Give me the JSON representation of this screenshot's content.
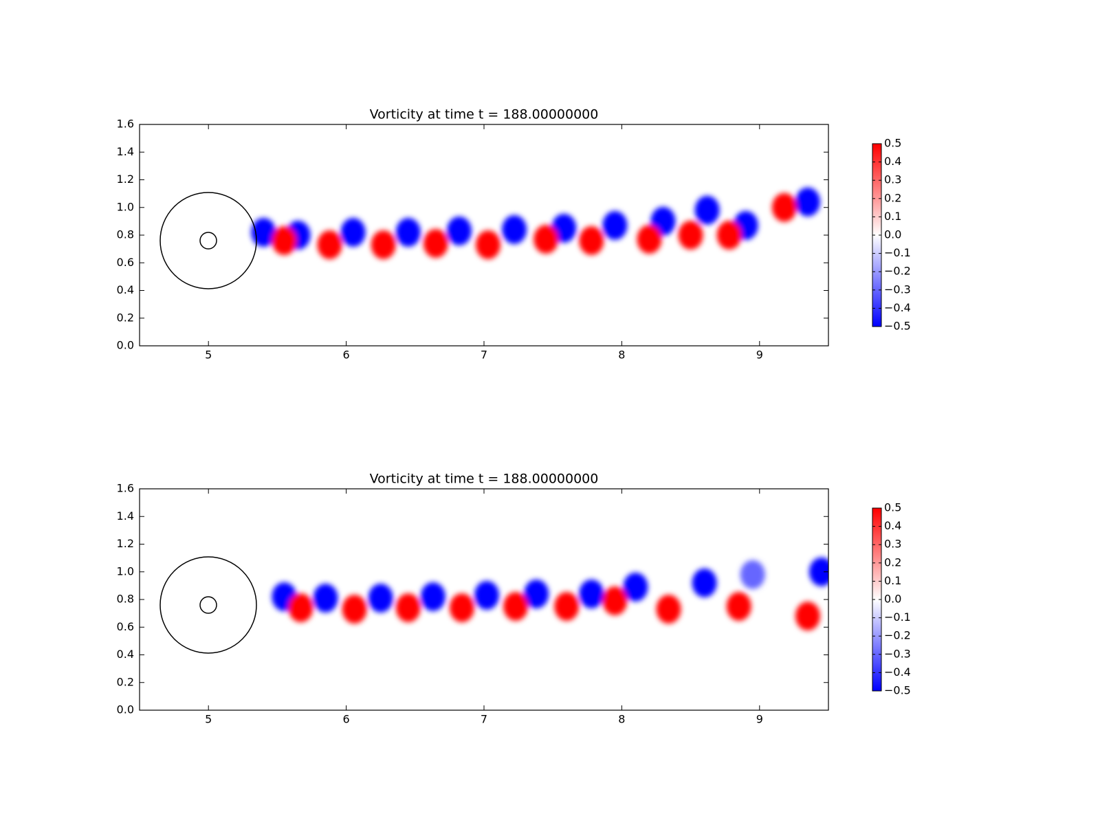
{
  "chart_data": [
    {
      "type": "heatmap",
      "title": "Vorticity at time t =   188.00000000",
      "xlim": [
        4.5,
        9.5
      ],
      "xticks": [
        5,
        6,
        7,
        8,
        9
      ],
      "ylim": [
        0,
        1.6
      ],
      "yticks": [
        {
          "value": 0,
          "label": "0.0"
        },
        0.2,
        0.4,
        0.6,
        0.8,
        {
          "value": 1,
          "label": "1.0"
        },
        1.2,
        1.4,
        1.6
      ],
      "x": [
        5.4,
        5.65,
        6.05,
        6.45,
        6.82,
        7.22,
        7.58,
        7.95,
        8.3,
        8.62,
        8.9,
        9.35,
        5.55,
        5.88,
        6.27,
        6.65,
        7.03,
        7.45,
        7.78,
        8.2,
        8.5,
        8.78,
        9.18
      ],
      "y": [
        0.82,
        0.8,
        0.82,
        0.82,
        0.83,
        0.84,
        0.85,
        0.87,
        0.9,
        0.98,
        0.87,
        1.04,
        0.76,
        0.73,
        0.73,
        0.74,
        0.73,
        0.77,
        0.76,
        0.77,
        0.8,
        0.8,
        1.0
      ],
      "values": [
        -0.5,
        -0.5,
        -0.5,
        -0.5,
        -0.5,
        -0.5,
        -0.5,
        -0.5,
        -0.5,
        -0.5,
        -0.5,
        -0.5,
        0.5,
        0.5,
        0.5,
        0.5,
        0.5,
        0.5,
        0.5,
        0.5,
        0.5,
        0.5,
        0.5
      ],
      "cmap": [
        "#0000ff",
        "#ffffff",
        "#ff0000"
      ],
      "clim": [
        -0.5,
        0.5
      ],
      "cticks": [
        {
          "value": -0.5,
          "label": "−0.5"
        },
        {
          "value": -0.4,
          "label": "−0.4"
        },
        {
          "value": -0.3,
          "label": "−0.3"
        },
        {
          "value": -0.2,
          "label": "−0.2"
        },
        {
          "value": -0.1,
          "label": "−0.1"
        },
        {
          "value": 0,
          "label": "0.0"
        },
        0.1,
        0.2,
        0.3,
        0.4,
        0.5
      ]
    },
    {
      "type": "heatmap",
      "title": "Vorticity at time t =   188.00000000",
      "xlim": [
        4.5,
        9.5
      ],
      "xticks": [
        5,
        6,
        7,
        8,
        9
      ],
      "ylim": [
        0,
        1.6
      ],
      "yticks": [
        {
          "value": 0,
          "label": "0.0"
        },
        0.2,
        0.4,
        0.6,
        0.8,
        {
          "value": 1,
          "label": "1.0"
        },
        1.2,
        1.4,
        1.6
      ],
      "x": [
        5.55,
        5.85,
        6.25,
        6.63,
        7.02,
        7.38,
        7.78,
        8.1,
        8.6,
        8.95,
        9.45,
        5.67,
        6.06,
        6.45,
        6.84,
        7.23,
        7.6,
        7.95,
        8.34,
        8.85,
        9.35
      ],
      "y": [
        0.82,
        0.81,
        0.81,
        0.82,
        0.83,
        0.84,
        0.84,
        0.89,
        0.92,
        0.98,
        1.0,
        0.74,
        0.73,
        0.74,
        0.74,
        0.75,
        0.75,
        0.79,
        0.73,
        0.75,
        0.68
      ],
      "values": [
        -0.5,
        -0.5,
        -0.5,
        -0.5,
        -0.5,
        -0.5,
        -0.5,
        -0.5,
        -0.5,
        -0.3,
        -0.5,
        0.5,
        0.5,
        0.5,
        0.5,
        0.5,
        0.5,
        0.5,
        0.5,
        0.5,
        0.5
      ],
      "cmap": [
        "#0000ff",
        "#ffffff",
        "#ff0000"
      ],
      "clim": [
        -0.5,
        0.5
      ],
      "cticks": [
        {
          "value": -0.5,
          "label": "−0.5"
        },
        {
          "value": -0.4,
          "label": "−0.4"
        },
        {
          "value": -0.3,
          "label": "−0.3"
        },
        {
          "value": -0.2,
          "label": "−0.2"
        },
        {
          "value": -0.1,
          "label": "−0.1"
        },
        {
          "value": 0,
          "label": "0.0"
        },
        0.1,
        0.2,
        0.3,
        0.4,
        0.5
      ]
    }
  ]
}
